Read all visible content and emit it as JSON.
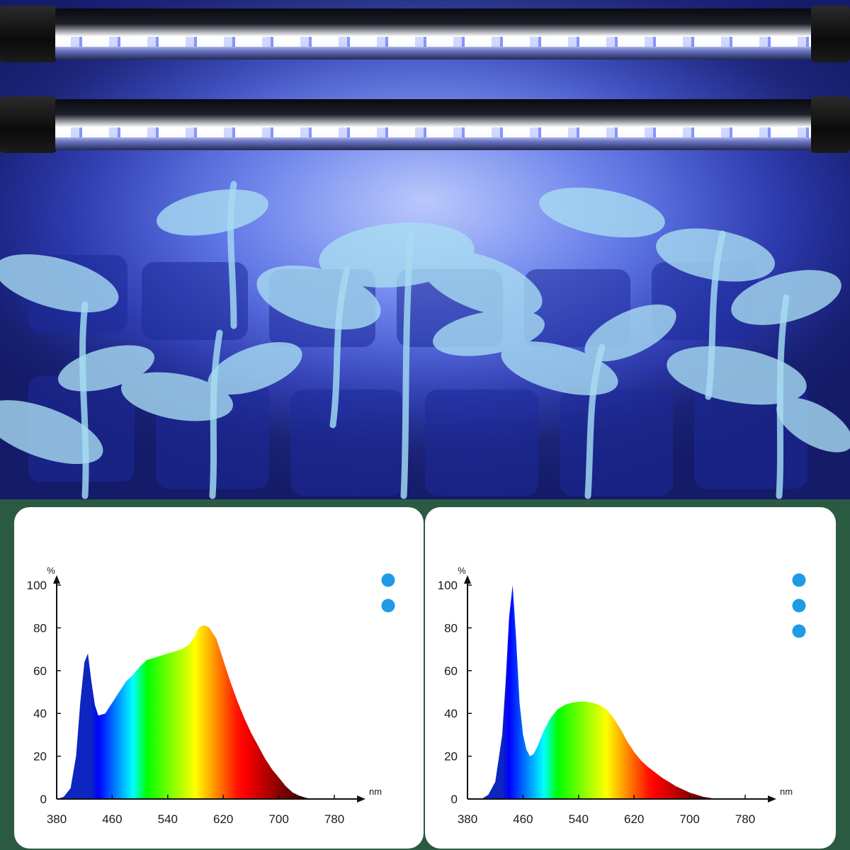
{
  "chart_data": [
    {
      "type": "area",
      "title": "",
      "xlabel": "",
      "ylabel": "",
      "x_unit": "nm",
      "y_unit": "%",
      "xlim": [
        380,
        780
      ],
      "ylim": [
        0,
        100
      ],
      "x_ticks": [
        380,
        460,
        540,
        620,
        700,
        780
      ],
      "y_ticks": [
        0,
        20,
        40,
        60,
        80,
        100
      ],
      "legend_placement": "top-right",
      "legend_markers": 2,
      "grid": false,
      "series": [
        {
          "x": [
            380,
            390,
            400,
            408,
            414,
            420,
            425,
            430,
            435,
            440,
            450,
            460,
            470,
            480,
            490,
            500,
            510,
            520,
            530,
            540,
            550,
            560,
            570,
            575,
            580,
            585,
            590,
            595,
            600,
            610,
            620,
            630,
            640,
            650,
            660,
            670,
            680,
            690,
            700,
            710,
            720,
            730,
            740,
            750
          ],
          "y": [
            0,
            1,
            5,
            20,
            45,
            64,
            68,
            55,
            44,
            39,
            40,
            45,
            50,
            55,
            58,
            62,
            65,
            66,
            67,
            68,
            69,
            70,
            72,
            74,
            77,
            80,
            81,
            81,
            80,
            75,
            65,
            55,
            46,
            38,
            31,
            25,
            19,
            14,
            10,
            6,
            3,
            1.5,
            0.5,
            0
          ]
        }
      ]
    },
    {
      "type": "area",
      "title": "",
      "xlabel": "",
      "ylabel": "",
      "x_unit": "nm",
      "y_unit": "%",
      "xlim": [
        380,
        780
      ],
      "ylim": [
        0,
        100
      ],
      "x_ticks": [
        380,
        460,
        540,
        620,
        700,
        780
      ],
      "y_ticks": [
        0,
        20,
        40,
        60,
        80,
        100
      ],
      "legend_placement": "top-right",
      "legend_markers": 3,
      "grid": false,
      "series": [
        {
          "x": [
            400,
            410,
            420,
            430,
            435,
            440,
            445,
            450,
            455,
            460,
            465,
            470,
            475,
            480,
            490,
            500,
            510,
            520,
            530,
            540,
            550,
            560,
            570,
            580,
            590,
            600,
            610,
            620,
            630,
            640,
            650,
            660,
            670,
            680,
            690,
            700,
            710,
            720,
            730,
            740
          ],
          "y": [
            0,
            2,
            8,
            30,
            55,
            85,
            100,
            75,
            45,
            30,
            23,
            20,
            21,
            24,
            32,
            38,
            42,
            44,
            45,
            45.5,
            45.5,
            45,
            44,
            42,
            38,
            33,
            27,
            22,
            18,
            15,
            12.5,
            10,
            8,
            6,
            4.5,
            3,
            2,
            1,
            0.5,
            0
          ]
        }
      ]
    }
  ],
  "colors": {
    "background": "#2a5a42",
    "legend_marker": "#1f9ae6",
    "axis": "#111111"
  }
}
